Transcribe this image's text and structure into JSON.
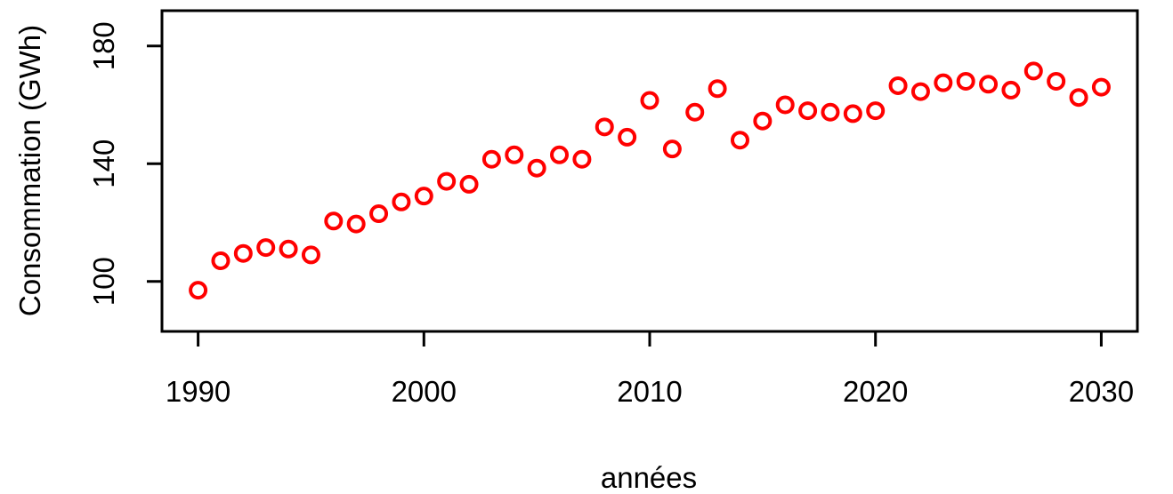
{
  "chart_data": {
    "type": "scatter",
    "title": "",
    "xlabel": "années",
    "ylabel": "Consommation (GWh)",
    "xlim": [
      1988.4,
      2031.6
    ],
    "ylim": [
      83,
      192
    ],
    "x_ticks": [
      1990,
      2000,
      2010,
      2020,
      2030
    ],
    "y_ticks": [
      100,
      140,
      180
    ],
    "grid": false,
    "legend": "none",
    "point_color": "#ff0000",
    "marker": "open-circle",
    "series": [
      {
        "x": [
          1990,
          1991,
          1992,
          1993,
          1994,
          1995,
          1996,
          1997,
          1998,
          1999,
          2000,
          2001,
          2002,
          2003,
          2004,
          2005,
          2006,
          2007,
          2008,
          2009,
          2010,
          2011,
          2012,
          2013,
          2014,
          2015,
          2016,
          2017,
          2018,
          2019,
          2020,
          2021,
          2022,
          2023,
          2024,
          2025,
          2026,
          2027,
          2028,
          2029,
          2030
        ],
        "y": [
          97,
          107,
          109.5,
          111.5,
          111,
          109,
          120.5,
          119.5,
          123,
          127,
          129,
          134,
          133,
          141.5,
          143,
          138.5,
          143,
          141.5,
          152.5,
          149,
          161.5,
          145,
          157.5,
          165.5,
          148,
          154.5,
          160,
          158,
          157.5,
          157,
          158,
          166.5,
          164.5,
          167.5,
          168,
          167,
          165,
          171.5,
          168,
          162.5,
          166
        ]
      }
    ]
  }
}
